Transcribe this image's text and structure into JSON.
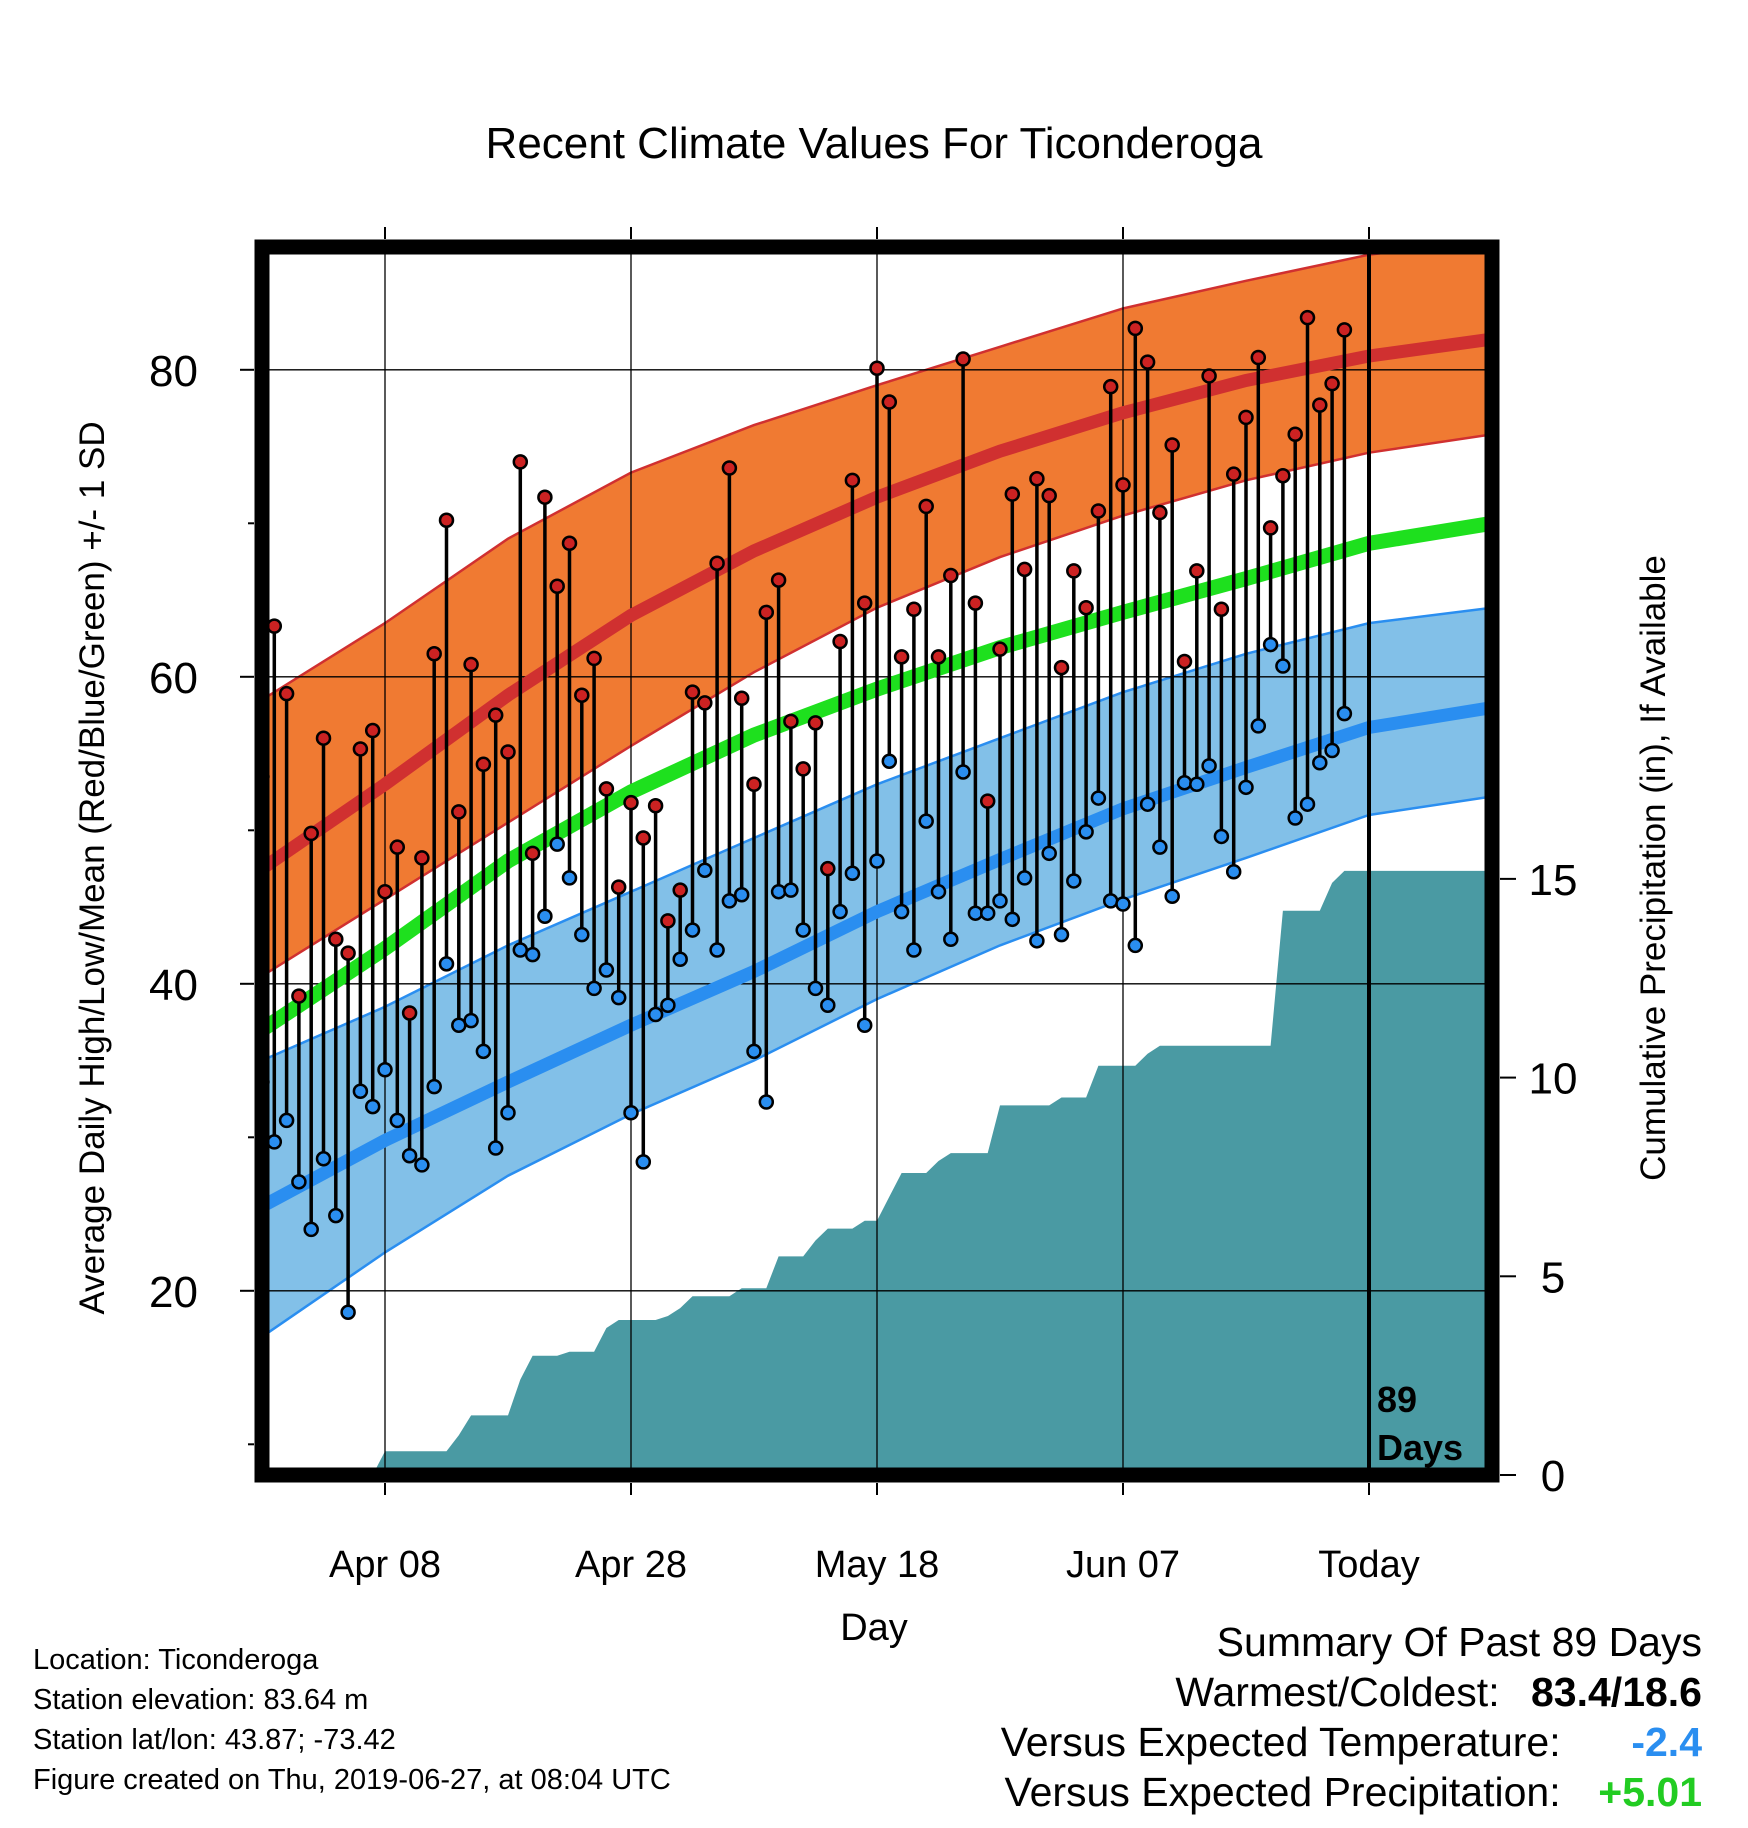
{
  "title": "Recent Climate Values For Ticonderoga",
  "colors": {
    "high_band": "#f07a32",
    "high_line": "#d03030",
    "low_band": "#82c0e8",
    "low_line": "#2a8ef0",
    "mean_line": "#1ee01e",
    "precip_fill": "#4a9aa3",
    "high_dot": "#cc2222",
    "low_dot": "#2a8ef0",
    "band_edge_high": "#d03030",
    "band_edge_low": "#2a8ef0",
    "negative_text": "#2a8ef0",
    "positive_text": "#22cc22"
  },
  "chart_data": {
    "type": "line",
    "title": "Recent Climate Values For Ticonderoga",
    "xlabel": "Day",
    "ylabel": "Average Daily High/Low/Mean (Red/Blue/Green) +/- 1 SD",
    "ylabel_right": "Cumulative Precipitation (in), If Available",
    "xlim": [
      0,
      100
    ],
    "ylim": [
      8,
      88
    ],
    "y2lim": [
      0,
      30.9
    ],
    "x_ticks": [
      {
        "x": 10,
        "label": "Apr 08"
      },
      {
        "x": 30,
        "label": "Apr 28"
      },
      {
        "x": 50,
        "label": "May 18"
      },
      {
        "x": 70,
        "label": "Jun 07"
      },
      {
        "x": 90,
        "label": "Today"
      }
    ],
    "y_ticks": [
      20,
      40,
      60,
      80
    ],
    "y2_ticks": [
      0,
      5,
      10,
      15
    ],
    "grid": true,
    "today_x": 90,
    "today_label": [
      "89",
      "Days"
    ],
    "normals": {
      "x": [
        0,
        10,
        20,
        30,
        40,
        50,
        60,
        70,
        80,
        90,
        100
      ],
      "high": [
        47.5,
        53.0,
        58.8,
        64.0,
        68.2,
        71.7,
        74.7,
        77.2,
        79.3,
        80.9,
        82.0
      ],
      "high_upper": [
        58.5,
        63.5,
        69.0,
        73.3,
        76.4,
        79.0,
        81.5,
        84.0,
        85.8,
        87.5,
        88.5
      ],
      "high_lower": [
        40.5,
        45.5,
        50.5,
        55.5,
        60.3,
        64.5,
        67.8,
        70.5,
        72.8,
        74.6,
        75.8
      ],
      "mean": [
        37.0,
        42.3,
        48.0,
        52.5,
        56.2,
        59.2,
        61.9,
        64.2,
        66.4,
        68.7,
        70.0
      ],
      "low": [
        25.5,
        29.8,
        33.6,
        37.3,
        40.8,
        44.7,
        48.1,
        51.4,
        54.1,
        56.7,
        58.0
      ],
      "low_upper": [
        35.0,
        38.5,
        42.5,
        46.0,
        49.5,
        53.0,
        56.0,
        59.0,
        61.5,
        63.5,
        64.5
      ],
      "low_lower": [
        17.0,
        22.5,
        27.5,
        31.5,
        35.0,
        39.0,
        42.5,
        45.5,
        48.2,
        51.0,
        52.2
      ]
    },
    "series": [
      {
        "name": "High",
        "values": [
          53.5,
          63.3,
          58.9,
          39.2,
          49.8,
          56.0,
          42.9,
          42.0,
          55.3,
          56.5,
          46.0,
          48.9,
          38.1,
          48.2,
          61.5,
          70.2,
          51.2,
          60.8,
          54.3,
          57.5,
          55.1,
          74.0,
          48.5,
          71.7,
          65.9,
          68.7,
          58.8,
          61.2,
          52.7,
          46.3,
          51.8,
          49.5,
          51.6,
          44.1,
          46.1,
          59.0,
          58.3,
          67.4,
          73.6,
          58.6,
          53.0,
          64.2,
          66.3,
          57.1,
          54.0,
          57.0,
          47.5,
          62.3,
          72.8,
          64.8,
          80.1,
          77.9,
          61.3,
          64.4,
          71.1,
          61.3,
          66.6,
          80.7,
          64.8,
          51.9,
          61.8,
          71.9,
          67.0,
          72.9,
          71.8,
          60.6,
          66.9,
          64.5,
          70.8,
          78.9,
          72.5,
          82.7,
          80.5,
          70.7,
          75.1,
          61.0,
          66.9,
          79.6,
          64.4,
          73.2,
          76.9,
          80.8,
          69.7,
          73.1,
          75.8,
          83.4,
          77.7,
          79.1,
          82.6
        ]
      },
      {
        "name": "Low",
        "values": [
          33.6,
          29.7,
          31.1,
          27.1,
          24.0,
          28.6,
          24.9,
          18.6,
          33.0,
          32.0,
          34.4,
          31.1,
          28.8,
          28.2,
          33.3,
          41.3,
          37.3,
          37.6,
          35.6,
          29.3,
          31.6,
          42.2,
          41.9,
          44.4,
          49.1,
          46.9,
          43.2,
          39.7,
          40.9,
          39.1,
          31.6,
          28.4,
          38.0,
          38.6,
          41.6,
          43.5,
          47.4,
          42.2,
          45.4,
          45.8,
          35.6,
          32.3,
          46.0,
          46.1,
          43.5,
          39.7,
          38.6,
          44.7,
          47.2,
          37.3,
          48.0,
          54.5,
          44.7,
          42.2,
          50.6,
          46.0,
          42.9,
          53.8,
          44.6,
          44.6,
          45.4,
          44.2,
          46.9,
          42.8,
          48.5,
          43.2,
          46.7,
          49.9,
          52.1,
          45.4,
          45.2,
          42.5,
          51.7,
          48.9,
          45.7,
          53.1,
          53.0,
          54.2,
          49.6,
          47.3,
          52.8,
          56.8,
          62.1,
          60.7,
          50.8,
          51.7,
          54.4,
          55.2,
          57.6
        ]
      },
      {
        "name": "Cumulative Precipitation",
        "values": [
          0.0,
          0.0,
          0.0,
          0.0,
          0.0,
          0.0,
          0.0,
          0.0,
          0.0,
          0.0,
          0.6,
          0.6,
          0.6,
          0.6,
          0.6,
          0.6,
          1.0,
          1.5,
          1.5,
          1.5,
          1.5,
          2.4,
          3.0,
          3.0,
          3.0,
          3.1,
          3.1,
          3.1,
          3.7,
          3.9,
          3.9,
          3.9,
          3.9,
          4.0,
          4.2,
          4.5,
          4.5,
          4.5,
          4.5,
          4.7,
          4.7,
          4.7,
          5.5,
          5.5,
          5.5,
          5.9,
          6.2,
          6.2,
          6.2,
          6.4,
          6.4,
          7.0,
          7.6,
          7.6,
          7.6,
          7.9,
          8.1,
          8.1,
          8.1,
          8.1,
          9.3,
          9.3,
          9.3,
          9.3,
          9.3,
          9.5,
          9.5,
          9.5,
          10.3,
          10.3,
          10.3,
          10.3,
          10.6,
          10.8,
          10.8,
          10.8,
          10.8,
          10.8,
          10.8,
          10.8,
          10.8,
          10.8,
          10.8,
          14.2,
          14.2,
          14.2,
          14.2,
          14.9,
          15.2,
          15.2
        ]
      }
    ]
  },
  "footer": {
    "location": "Location: Ticonderoga",
    "elevation": "Station elevation: 83.64 m",
    "latlon": "Station lat/lon: 43.87; -73.42",
    "created": "Figure created on Thu, 2019-06-27, at 08:04 UTC"
  },
  "summary": {
    "heading": "Summary Of Past 89 Days",
    "warmest_coldest_label": "Warmest/Coldest:",
    "warmest_coldest_value": "83.4/18.6",
    "temp_label": "Versus Expected Temperature:",
    "temp_value": "-2.4",
    "precip_label": "Versus Expected Precipitation:",
    "precip_value": "+5.01"
  }
}
